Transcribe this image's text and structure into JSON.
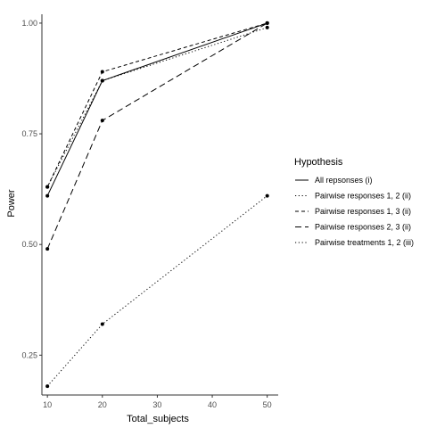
{
  "chart_data": {
    "type": "line",
    "xlabel": "Total_subjects",
    "ylabel": "Power",
    "x": [
      10,
      20,
      50
    ],
    "xticks": [
      10,
      20,
      30,
      40,
      50
    ],
    "xlim": [
      9,
      52
    ],
    "yticks": [
      0.25,
      0.5,
      0.75,
      1.0
    ],
    "ytick_labels": [
      "0.25",
      "0.50",
      "0.75",
      "1.00"
    ],
    "ylim": [
      0.16,
      1.02
    ],
    "grid": false,
    "legend_position": "right",
    "legend_title": "Hypothesis",
    "series": [
      {
        "name": "All repsonses (i)",
        "line_style": "solid",
        "values": [
          0.61,
          0.87,
          1.0
        ]
      },
      {
        "name": "Pairwise responses 1, 2 (ii)",
        "line_style": "dotted",
        "values": [
          0.63,
          0.87,
          0.99
        ]
      },
      {
        "name": "Pairwise responses 1, 3 (ii)",
        "line_style": "dashed",
        "values": [
          0.63,
          0.89,
          1.0
        ]
      },
      {
        "name": "Pairwise responses 2, 3 (ii)",
        "line_style": "longdash",
        "values": [
          0.49,
          0.78,
          1.0
        ]
      },
      {
        "name": "Pairwise treatments 1, 2 (iii)",
        "line_style": "dotted",
        "values": [
          0.18,
          0.32,
          0.61
        ]
      }
    ],
    "colors": {
      "line": "#000000",
      "point": "#000000",
      "axis": "#333333",
      "text": "#4d4d4d"
    }
  }
}
